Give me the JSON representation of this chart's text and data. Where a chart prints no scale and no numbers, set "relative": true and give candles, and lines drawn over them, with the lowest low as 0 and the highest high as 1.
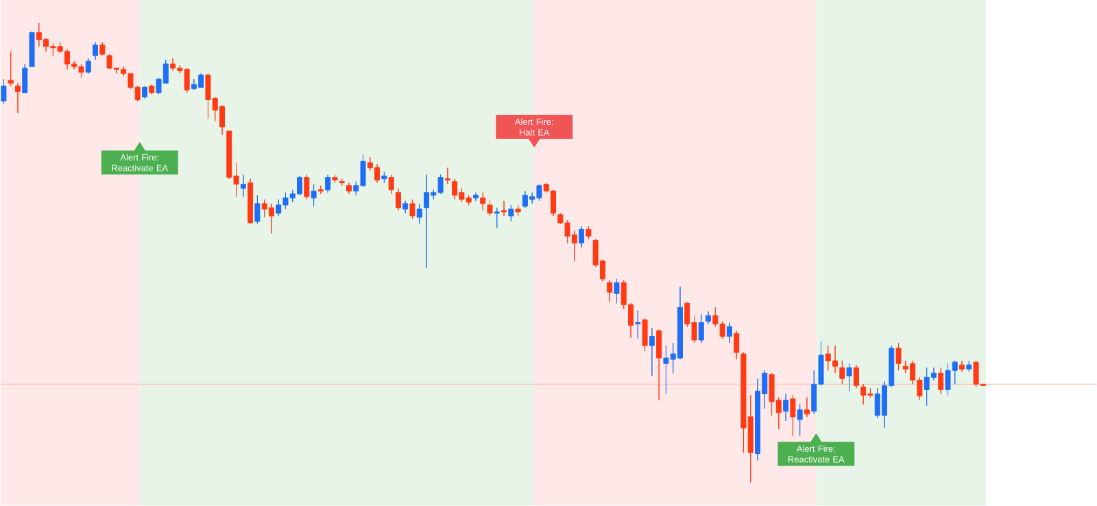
{
  "chart_data": {
    "type": "candlestick",
    "relative": true,
    "categories": [
      null,
      null,
      null,
      null,
      null,
      null,
      null,
      null,
      null,
      null,
      null,
      null,
      null,
      null,
      null,
      null,
      null,
      null,
      null,
      null,
      null,
      null,
      null,
      null,
      null,
      null,
      null,
      null,
      null,
      null,
      null,
      null,
      null,
      null,
      null,
      null,
      null,
      null,
      null,
      null,
      null,
      null,
      null,
      null,
      null,
      null,
      null,
      null,
      null,
      null,
      null,
      null,
      null,
      null,
      null,
      null,
      null,
      null,
      null,
      null,
      null,
      null,
      null,
      null,
      null,
      null,
      null,
      null,
      null,
      null,
      null,
      null,
      null,
      null,
      null,
      null,
      null,
      null,
      null,
      null,
      null,
      null,
      null,
      null,
      null,
      null,
      null,
      null,
      null,
      null,
      null,
      null,
      null,
      null,
      null,
      null,
      null,
      null,
      null,
      null,
      null,
      null,
      null,
      null,
      null,
      null,
      null,
      null,
      null,
      null,
      null,
      null,
      null,
      null,
      null,
      null,
      null,
      null,
      null,
      null,
      null,
      null,
      null,
      null,
      null,
      null,
      null,
      null,
      null,
      null,
      null,
      null,
      null,
      null,
      null,
      null,
      null,
      null,
      null,
      null
    ],
    "ohlc": [
      [
        0.83,
        0.878,
        0.824,
        0.863
      ],
      [
        0.875,
        0.938,
        0.863,
        0.869
      ],
      [
        0.863,
        0.869,
        0.804,
        0.851
      ],
      [
        0.848,
        0.911,
        0.848,
        0.902
      ],
      [
        0.905,
        0.982,
        0.905,
        0.979
      ],
      [
        0.979,
        1.0,
        0.949,
        0.964
      ],
      [
        0.964,
        0.967,
        0.938,
        0.949
      ],
      [
        0.949,
        0.955,
        0.929,
        0.946
      ],
      [
        0.949,
        0.958,
        0.935,
        0.938
      ],
      [
        0.938,
        0.943,
        0.899,
        0.911
      ],
      [
        0.911,
        0.917,
        0.899,
        0.905
      ],
      [
        0.905,
        0.911,
        0.881,
        0.893
      ],
      [
        0.893,
        0.923,
        0.89,
        0.917
      ],
      [
        0.929,
        0.958,
        0.92,
        0.952
      ],
      [
        0.952,
        0.958,
        0.929,
        0.932
      ],
      [
        0.929,
        0.932,
        0.899,
        0.902
      ],
      [
        0.902,
        0.902,
        0.89,
        0.899
      ],
      [
        0.899,
        0.905,
        0.884,
        0.89
      ],
      [
        0.89,
        0.89,
        0.857,
        0.86
      ],
      [
        0.86,
        0.863,
        0.83,
        0.833
      ],
      [
        0.839,
        0.863,
        0.836,
        0.86
      ],
      [
        0.863,
        0.866,
        0.845,
        0.848
      ],
      [
        0.848,
        0.881,
        0.845,
        0.878
      ],
      [
        0.869,
        0.92,
        0.869,
        0.911
      ],
      [
        0.911,
        0.923,
        0.896,
        0.902
      ],
      [
        0.902,
        0.908,
        0.89,
        0.896
      ],
      [
        0.899,
        0.902,
        0.848,
        0.854
      ],
      [
        0.857,
        0.878,
        0.854,
        0.866
      ],
      [
        0.86,
        0.89,
        0.86,
        0.887
      ],
      [
        0.887,
        0.89,
        0.792,
        0.833
      ],
      [
        0.836,
        0.839,
        0.786,
        0.81
      ],
      [
        0.818,
        0.821,
        0.756,
        0.774
      ],
      [
        0.765,
        0.765,
        0.661,
        0.664
      ],
      [
        0.667,
        0.696,
        0.622,
        0.649
      ],
      [
        0.64,
        0.67,
        0.622,
        0.649
      ],
      [
        0.652,
        0.661,
        0.565,
        0.565
      ],
      [
        0.568,
        0.625,
        0.563,
        0.607
      ],
      [
        0.607,
        0.616,
        0.577,
        0.595
      ],
      [
        0.598,
        0.607,
        0.542,
        0.58
      ],
      [
        0.586,
        0.616,
        0.58,
        0.604
      ],
      [
        0.604,
        0.631,
        0.595,
        0.619
      ],
      [
        0.619,
        0.637,
        0.61,
        0.628
      ],
      [
        0.628,
        0.667,
        0.625,
        0.664
      ],
      [
        0.664,
        0.67,
        0.616,
        0.622
      ],
      [
        0.619,
        0.649,
        0.601,
        0.634
      ],
      [
        0.637,
        0.646,
        0.628,
        0.634
      ],
      [
        0.637,
        0.67,
        0.631,
        0.664
      ],
      [
        0.664,
        0.67,
        0.652,
        0.658
      ],
      [
        0.655,
        0.661,
        0.646,
        0.652
      ],
      [
        0.646,
        0.652,
        0.628,
        0.634
      ],
      [
        0.634,
        0.655,
        0.625,
        0.646
      ],
      [
        0.646,
        0.714,
        0.643,
        0.699
      ],
      [
        0.696,
        0.708,
        0.679,
        0.685
      ],
      [
        0.685,
        0.693,
        0.652,
        0.658
      ],
      [
        0.661,
        0.676,
        0.652,
        0.667
      ],
      [
        0.664,
        0.67,
        0.628,
        0.637
      ],
      [
        0.631,
        0.64,
        0.592,
        0.598
      ],
      [
        0.595,
        0.613,
        0.586,
        0.607
      ],
      [
        0.607,
        0.616,
        0.574,
        0.58
      ],
      [
        0.577,
        0.607,
        0.563,
        0.595
      ],
      [
        0.598,
        0.67,
        0.467,
        0.631
      ],
      [
        0.625,
        0.637,
        0.616,
        0.631
      ],
      [
        0.631,
        0.67,
        0.628,
        0.664
      ],
      [
        0.661,
        0.685,
        0.649,
        0.658
      ],
      [
        0.655,
        0.661,
        0.616,
        0.625
      ],
      [
        0.631,
        0.64,
        0.61,
        0.616
      ],
      [
        0.619,
        0.625,
        0.604,
        0.61
      ],
      [
        0.619,
        0.631,
        0.613,
        0.625
      ],
      [
        0.619,
        0.631,
        0.592,
        0.607
      ],
      [
        0.604,
        0.613,
        0.58,
        0.586
      ],
      [
        0.586,
        0.598,
        0.554,
        0.589
      ],
      [
        0.592,
        0.613,
        0.58,
        0.589
      ],
      [
        0.58,
        0.604,
        0.568,
        0.595
      ],
      [
        0.595,
        0.604,
        0.58,
        0.589
      ],
      [
        0.601,
        0.634,
        0.598,
        0.625
      ],
      [
        0.616,
        0.631,
        0.607,
        0.622
      ],
      [
        0.619,
        0.649,
        0.613,
        0.646
      ],
      [
        0.649,
        0.652,
        0.631,
        0.634
      ],
      [
        0.634,
        0.637,
        0.58,
        0.586
      ],
      [
        0.583,
        0.586,
        0.563,
        0.565
      ],
      [
        0.565,
        0.571,
        0.521,
        0.536
      ],
      [
        0.539,
        0.548,
        0.482,
        0.521
      ],
      [
        0.521,
        0.557,
        0.512,
        0.551
      ],
      [
        0.551,
        0.557,
        0.53,
        0.536
      ],
      [
        0.527,
        0.53,
        0.47,
        0.473
      ],
      [
        0.482,
        0.485,
        0.438,
        0.443
      ],
      [
        0.435,
        0.44,
        0.393,
        0.414
      ],
      [
        0.411,
        0.443,
        0.39,
        0.435
      ],
      [
        0.435,
        0.44,
        0.378,
        0.387
      ],
      [
        0.387,
        0.39,
        0.315,
        0.342
      ],
      [
        0.345,
        0.375,
        0.313,
        0.348
      ],
      [
        0.354,
        0.357,
        0.286,
        0.298
      ],
      [
        0.298,
        0.336,
        0.232,
        0.318
      ],
      [
        0.33,
        0.333,
        0.179,
        0.271
      ],
      [
        0.259,
        0.298,
        0.193,
        0.271
      ],
      [
        0.268,
        0.304,
        0.238,
        0.28
      ],
      [
        0.271,
        0.426,
        0.268,
        0.381
      ],
      [
        0.39,
        0.393,
        0.339,
        0.345
      ],
      [
        0.348,
        0.363,
        0.304,
        0.31
      ],
      [
        0.31,
        0.366,
        0.304,
        0.348
      ],
      [
        0.351,
        0.372,
        0.345,
        0.363
      ],
      [
        0.363,
        0.381,
        0.339,
        0.345
      ],
      [
        0.345,
        0.351,
        0.313,
        0.318
      ],
      [
        0.318,
        0.348,
        0.304,
        0.339
      ],
      [
        0.324,
        0.33,
        0.268,
        0.283
      ],
      [
        0.28,
        0.283,
        0.065,
        0.119
      ],
      [
        0.143,
        0.19,
        0.0,
        0.065
      ],
      [
        0.063,
        0.226,
        0.048,
        0.199
      ],
      [
        0.193,
        0.244,
        0.161,
        0.238
      ],
      [
        0.235,
        0.238,
        0.146,
        0.176
      ],
      [
        0.179,
        0.185,
        0.116,
        0.152
      ],
      [
        0.155,
        0.193,
        0.134,
        0.179
      ],
      [
        0.182,
        0.19,
        0.101,
        0.143
      ],
      [
        0.137,
        0.17,
        0.101,
        0.158
      ],
      [
        0.158,
        0.185,
        0.143,
        0.149
      ],
      [
        0.155,
        0.244,
        0.149,
        0.214
      ],
      [
        0.214,
        0.307,
        0.211,
        0.277
      ],
      [
        0.28,
        0.298,
        0.244,
        0.265
      ],
      [
        0.265,
        0.298,
        0.238,
        0.253
      ],
      [
        0.25,
        0.265,
        0.214,
        0.226
      ],
      [
        0.232,
        0.259,
        0.199,
        0.25
      ],
      [
        0.25,
        0.256,
        0.205,
        0.211
      ],
      [
        0.208,
        0.214,
        0.17,
        0.19
      ],
      [
        0.193,
        0.205,
        0.185,
        0.19
      ],
      [
        0.146,
        0.205,
        0.14,
        0.193
      ],
      [
        0.146,
        0.22,
        0.119,
        0.211
      ],
      [
        0.211,
        0.298,
        0.208,
        0.292
      ],
      [
        0.292,
        0.304,
        0.244,
        0.259
      ],
      [
        0.253,
        0.265,
        0.238,
        0.247
      ],
      [
        0.259,
        0.265,
        0.214,
        0.223
      ],
      [
        0.223,
        0.229,
        0.179,
        0.188
      ],
      [
        0.202,
        0.25,
        0.167,
        0.229
      ],
      [
        0.229,
        0.25,
        0.223,
        0.238
      ],
      [
        0.238,
        0.25,
        0.193,
        0.202
      ],
      [
        0.202,
        0.259,
        0.19,
        0.244
      ],
      [
        0.244,
        0.265,
        0.214,
        0.262
      ],
      [
        0.256,
        0.265,
        0.241,
        0.247
      ],
      [
        0.247,
        0.265,
        0.241,
        0.256
      ],
      [
        0.262,
        0.265,
        0.208,
        0.214
      ],
      [
        0.214,
        0.214,
        0.211,
        0.211
      ]
    ],
    "colors": [
      "#1e6ff5",
      "#ff3b14",
      "#ff3b14",
      "#1e6ff5",
      "#1e6ff5",
      "#ff3b14",
      "#ff3b14",
      "#ff3b14",
      "#ff3b14",
      "#ff3b14",
      "#ff3b14",
      "#ff3b14",
      "#1e6ff5",
      "#1e6ff5",
      "#ff3b14",
      "#ff3b14",
      "#ff3b14",
      "#ff3b14",
      "#ff3b14",
      "#ff3b14",
      "#1e6ff5",
      "#ff3b14",
      "#1e6ff5",
      "#1e6ff5",
      "#ff3b14",
      "#ff3b14",
      "#ff3b14",
      "#1e6ff5",
      "#1e6ff5",
      "#ff3b14",
      "#ff3b14",
      "#ff3b14",
      "#ff3b14",
      "#ff3b14",
      "#1e6ff5",
      "#ff3b14",
      "#1e6ff5",
      "#ff3b14",
      "#ff3b14",
      "#1e6ff5",
      "#1e6ff5",
      "#1e6ff5",
      "#1e6ff5",
      "#ff3b14",
      "#1e6ff5",
      "#ff3b14",
      "#1e6ff5",
      "#ff3b14",
      "#ff3b14",
      "#ff3b14",
      "#1e6ff5",
      "#1e6ff5",
      "#ff3b14",
      "#ff3b14",
      "#1e6ff5",
      "#ff3b14",
      "#ff3b14",
      "#1e6ff5",
      "#ff3b14",
      "#1e6ff5",
      "#1e6ff5",
      "#1e6ff5",
      "#1e6ff5",
      "#ff3b14",
      "#ff3b14",
      "#ff3b14",
      "#ff3b14",
      "#1e6ff5",
      "#ff3b14",
      "#ff3b14",
      "#1e6ff5",
      "#ff3b14",
      "#1e6ff5",
      "#ff3b14",
      "#1e6ff5",
      "#1e6ff5",
      "#1e6ff5",
      "#ff3b14",
      "#ff3b14",
      "#ff3b14",
      "#ff3b14",
      "#ff3b14",
      "#1e6ff5",
      "#ff3b14",
      "#ff3b14",
      "#ff3b14",
      "#ff3b14",
      "#1e6ff5",
      "#ff3b14",
      "#ff3b14",
      "#1e6ff5",
      "#ff3b14",
      "#1e6ff5",
      "#ff3b14",
      "#1e6ff5",
      "#1e6ff5",
      "#1e6ff5",
      "#ff3b14",
      "#ff3b14",
      "#1e6ff5",
      "#1e6ff5",
      "#ff3b14",
      "#ff3b14",
      "#1e6ff5",
      "#ff3b14",
      "#ff3b14",
      "#ff3b14",
      "#1e6ff5",
      "#1e6ff5",
      "#ff3b14",
      "#ff3b14",
      "#1e6ff5",
      "#ff3b14",
      "#1e6ff5",
      "#ff3b14",
      "#1e6ff5",
      "#1e6ff5",
      "#ff3b14",
      "#ff3b14",
      "#ff3b14",
      "#1e6ff5",
      "#ff3b14",
      "#ff3b14",
      "#ff3b14",
      "#1e6ff5",
      "#1e6ff5",
      "#1e6ff5",
      "#ff3b14",
      "#ff3b14",
      "#ff3b14",
      "#ff3b14",
      "#1e6ff5",
      "#1e6ff5",
      "#ff3b14",
      "#1e6ff5",
      "#1e6ff5",
      "#ff3b14",
      "#1e6ff5",
      "#ff3b14",
      "#ff3b14"
    ],
    "ref_lines": [
      {
        "axis": "y",
        "value": 0.214,
        "color": "#f7c4b8"
      }
    ],
    "annotations": [
      "Alert Fire: Reactivate EA",
      "Alert Fire: Halt EA",
      "Alert Fire: Reactivate EA"
    ]
  }
}
